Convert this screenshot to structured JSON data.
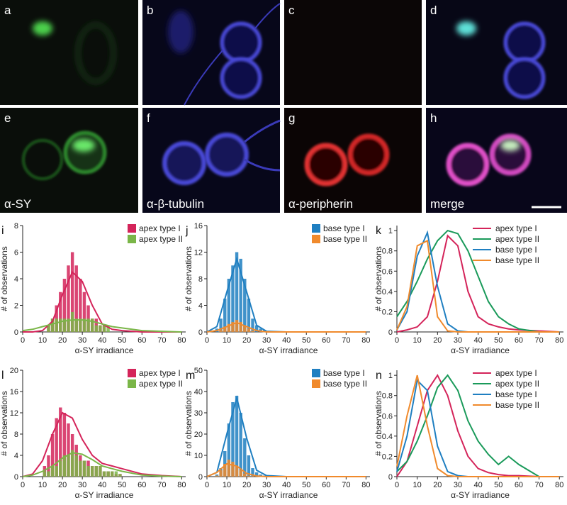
{
  "micrographs": [
    {
      "label": "a"
    },
    {
      "label": "b"
    },
    {
      "label": "c"
    },
    {
      "label": "d"
    },
    {
      "label": "e",
      "caption": "α-SY"
    },
    {
      "label": "f",
      "caption": "α-β-tubulin"
    },
    {
      "label": "g",
      "caption": "α-peripherin"
    },
    {
      "label": "h",
      "caption": "merge"
    }
  ],
  "chart_data": [
    {
      "type": "histogram",
      "panel": "i",
      "xlabel": "α-SY irradiance",
      "ylabel": "# of observations",
      "xlim": [
        0,
        82
      ],
      "xticks": [
        0,
        10,
        20,
        30,
        40,
        50,
        60,
        70,
        80
      ],
      "ylim": [
        0,
        8
      ],
      "yticks": [
        0,
        2,
        4,
        6,
        8
      ],
      "legend": "top-right",
      "series": [
        {
          "name": "apex type I",
          "color": "#d4245a",
          "bins": [
            10,
            12,
            14,
            16,
            18,
            20,
            22,
            24,
            26,
            28,
            30,
            32,
            34,
            36,
            38,
            40,
            42,
            44,
            46,
            48,
            50
          ],
          "values": [
            0,
            0.5,
            1,
            2,
            3,
            4,
            5,
            6,
            5,
            4,
            3,
            2,
            1,
            1,
            0.5,
            0.5,
            0,
            0,
            0,
            0
          ],
          "fit": {
            "x": [
              0,
              5,
              10,
              15,
              20,
              25,
              30,
              35,
              40,
              45,
              50,
              60,
              70,
              80
            ],
            "values": [
              0,
              0,
              0.1,
              0.8,
              2.8,
              4.5,
              3.8,
              2,
              0.6,
              0.2,
              0.1,
              0,
              0,
              0
            ]
          }
        },
        {
          "name": "apex type II",
          "color": "#7ab648",
          "bins": [
            10,
            12,
            14,
            16,
            18,
            20,
            22,
            24,
            26,
            28,
            30,
            32,
            34,
            36,
            38,
            40,
            42,
            44,
            46,
            48,
            50
          ],
          "values": [
            0,
            0.5,
            1,
            1,
            1,
            1,
            1,
            1.5,
            1,
            1,
            1,
            1,
            1,
            0.5,
            0.5,
            0.5,
            0.5,
            0,
            0,
            0
          ],
          "fit": {
            "x": [
              0,
              5,
              10,
              15,
              20,
              25,
              30,
              35,
              40,
              45,
              50,
              60,
              70,
              80
            ],
            "values": [
              0.1,
              0.2,
              0.4,
              0.6,
              0.8,
              0.9,
              0.9,
              0.8,
              0.6,
              0.4,
              0.3,
              0.1,
              0.05,
              0
            ]
          }
        }
      ]
    },
    {
      "type": "histogram",
      "panel": "j",
      "xlabel": "α-SY irradiance",
      "ylabel": "# of observations",
      "xlim": [
        0,
        82
      ],
      "xticks": [
        0,
        10,
        20,
        30,
        40,
        50,
        60,
        70,
        80
      ],
      "ylim": [
        0,
        16
      ],
      "yticks": [
        0,
        4,
        8,
        12,
        16
      ],
      "legend": "top-right",
      "series": [
        {
          "name": "base type I",
          "color": "#1f7fc1",
          "bins": [
            4,
            6,
            8,
            10,
            12,
            14,
            16,
            18,
            20,
            22,
            24,
            26,
            28,
            30
          ],
          "values": [
            0.5,
            2,
            5,
            8,
            10,
            12,
            11,
            8,
            5,
            2,
            1,
            0.5,
            0.3
          ],
          "fit": {
            "x": [
              0,
              5,
              10,
              15,
              20,
              25,
              30,
              40,
              80
            ],
            "values": [
              0,
              0.8,
              6,
              11,
              6,
              1,
              0.1,
              0,
              0
            ]
          }
        },
        {
          "name": "base type II",
          "color": "#f08a2c",
          "bins": [
            4,
            6,
            8,
            10,
            12,
            14,
            16,
            18,
            20,
            22,
            24,
            26,
            28,
            30
          ],
          "values": [
            0,
            0.3,
            0.8,
            1.2,
            1.5,
            1.8,
            1.5,
            1,
            0.5,
            0.2,
            0,
            0,
            0
          ],
          "fit": {
            "x": [
              0,
              5,
              10,
              15,
              20,
              25,
              30,
              40,
              80
            ],
            "values": [
              0,
              0.2,
              0.8,
              1.4,
              0.8,
              0.2,
              0,
              0,
              0
            ]
          }
        }
      ]
    },
    {
      "type": "line",
      "panel": "k",
      "xlabel": "α-SY irradiance",
      "ylabel": "# of observations",
      "xlim": [
        0,
        82
      ],
      "xticks": [
        0,
        10,
        20,
        30,
        40,
        50,
        60,
        70,
        80
      ],
      "ylim": [
        0,
        1.05
      ],
      "yticks": [
        0,
        0.2,
        0.4,
        0.6,
        0.8,
        1
      ],
      "legend": "top-right",
      "x": [
        0,
        5,
        10,
        15,
        20,
        25,
        30,
        35,
        40,
        45,
        50,
        55,
        60,
        70,
        80
      ],
      "series": [
        {
          "name": "apex type I",
          "color": "#d4245a",
          "values": [
            0,
            0.02,
            0.05,
            0.15,
            0.5,
            0.95,
            0.85,
            0.4,
            0.15,
            0.08,
            0.05,
            0.03,
            0.02,
            0.01,
            0
          ]
        },
        {
          "name": "apex type II",
          "color": "#1a9a5a",
          "values": [
            0.15,
            0.3,
            0.5,
            0.72,
            0.9,
            1,
            0.97,
            0.8,
            0.55,
            0.3,
            0.15,
            0.08,
            0.03,
            0,
            0
          ]
        },
        {
          "name": "base type I",
          "color": "#1f7fc1",
          "values": [
            0.02,
            0.2,
            0.75,
            0.98,
            0.45,
            0.08,
            0.01,
            0,
            0,
            0,
            0,
            0,
            0,
            0,
            0
          ]
        },
        {
          "name": "base type II",
          "color": "#f08a2c",
          "values": [
            0.02,
            0.25,
            0.85,
            0.9,
            0.15,
            0.01,
            0,
            0,
            0,
            0,
            0,
            0,
            0,
            0,
            0
          ]
        }
      ]
    },
    {
      "type": "histogram",
      "panel": "l",
      "xlabel": "α-SY irradiance",
      "ylabel": "# of observations",
      "xlim": [
        0,
        82
      ],
      "xticks": [
        0,
        10,
        20,
        30,
        40,
        50,
        60,
        70,
        80
      ],
      "ylim": [
        0,
        20
      ],
      "yticks": [
        0,
        4,
        8,
        12,
        16,
        20
      ],
      "legend": "top-right",
      "series": [
        {
          "name": "apex type I",
          "color": "#d4245a",
          "bins": [
            10,
            12,
            14,
            16,
            18,
            20,
            22,
            24,
            26,
            28,
            30,
            32,
            34,
            36,
            38,
            40,
            42,
            44,
            46,
            48,
            50
          ],
          "values": [
            2,
            4,
            8,
            11,
            13,
            12,
            10,
            8,
            6,
            4,
            3,
            3,
            2,
            2,
            2,
            1,
            1,
            1,
            0.5,
            0.5
          ],
          "fit": {
            "x": [
              0,
              5,
              10,
              15,
              20,
              25,
              30,
              35,
              40,
              45,
              50,
              60,
              70,
              80
            ],
            "values": [
              0,
              0.5,
              3,
              8,
              12,
              11,
              7,
              4,
              2.5,
              2,
              1.5,
              0.5,
              0.2,
              0
            ]
          }
        },
        {
          "name": "apex type II",
          "color": "#7ab648",
          "bins": [
            10,
            12,
            14,
            16,
            18,
            20,
            22,
            24,
            26,
            28,
            30,
            32,
            34,
            36,
            38,
            40,
            42,
            44,
            46,
            48,
            50
          ],
          "values": [
            1,
            1,
            2,
            2,
            3,
            4,
            4,
            5,
            4,
            3,
            3,
            2,
            2,
            2,
            2,
            1,
            1,
            1,
            1,
            0.5
          ],
          "fit": {
            "x": [
              0,
              5,
              10,
              15,
              20,
              25,
              30,
              35,
              40,
              45,
              50,
              60,
              70,
              80
            ],
            "values": [
              0,
              0.3,
              1,
              2,
              3.5,
              4.5,
              4.2,
              3.2,
              2,
              1.5,
              1,
              0.3,
              0.1,
              0
            ]
          }
        }
      ]
    },
    {
      "type": "histogram",
      "panel": "m",
      "xlabel": "α-SY irradiance",
      "ylabel": "# of observations",
      "xlim": [
        0,
        82
      ],
      "xticks": [
        0,
        10,
        20,
        30,
        40,
        50,
        60,
        70,
        80
      ],
      "ylim": [
        0,
        50
      ],
      "yticks": [
        0,
        10,
        20,
        30,
        40,
        50
      ],
      "legend": "top-right",
      "series": [
        {
          "name": "base type I",
          "color": "#1f7fc1",
          "bins": [
            4,
            6,
            8,
            10,
            12,
            14,
            16,
            18,
            20,
            22,
            24,
            26,
            28,
            30
          ],
          "values": [
            1,
            4,
            12,
            25,
            35,
            38,
            30,
            18,
            10,
            4,
            2,
            1,
            0.5
          ],
          "fit": {
            "x": [
              0,
              5,
              10,
              15,
              20,
              25,
              30,
              40,
              80
            ],
            "values": [
              0,
              2,
              20,
              37,
              18,
              3,
              0.5,
              0,
              0
            ]
          }
        },
        {
          "name": "base type II",
          "color": "#f08a2c",
          "bins": [
            4,
            6,
            8,
            10,
            12,
            14,
            16,
            18,
            20,
            22,
            24,
            26,
            28,
            30
          ],
          "values": [
            0.5,
            3,
            6,
            8,
            7,
            5,
            3,
            1.5,
            0.5,
            0.3,
            0,
            0,
            0
          ],
          "fit": {
            "x": [
              0,
              5,
              10,
              15,
              20,
              25,
              30,
              40,
              80
            ],
            "values": [
              0,
              2,
              6,
              5,
              1.5,
              0.3,
              0,
              0,
              0
            ]
          }
        }
      ]
    },
    {
      "type": "line",
      "panel": "n",
      "xlabel": "α-SY irradiance",
      "ylabel": "# of observations",
      "xlim": [
        0,
        82
      ],
      "xticks": [
        0,
        10,
        20,
        30,
        40,
        50,
        60,
        70,
        80
      ],
      "ylim": [
        0,
        1.05
      ],
      "yticks": [
        0,
        0.2,
        0.4,
        0.6,
        0.8,
        1
      ],
      "legend": "top-right",
      "x": [
        0,
        5,
        10,
        15,
        20,
        25,
        30,
        35,
        40,
        45,
        50,
        55,
        60,
        70,
        80
      ],
      "series": [
        {
          "name": "apex type I",
          "color": "#d4245a",
          "values": [
            0,
            0.15,
            0.5,
            0.85,
            1,
            0.8,
            0.45,
            0.2,
            0.08,
            0.04,
            0.02,
            0.01,
            0.01,
            0,
            0
          ]
        },
        {
          "name": "apex type II",
          "color": "#1a9a5a",
          "values": [
            0.05,
            0.15,
            0.35,
            0.6,
            0.88,
            1,
            0.85,
            0.55,
            0.35,
            0.22,
            0.12,
            0.2,
            0.12,
            0,
            0
          ]
        },
        {
          "name": "base type I",
          "color": "#1f7fc1",
          "values": [
            0.05,
            0.4,
            0.95,
            0.85,
            0.3,
            0.05,
            0.01,
            0,
            0,
            0,
            0,
            0,
            0,
            0,
            0
          ]
        },
        {
          "name": "base type II",
          "color": "#f08a2c",
          "values": [
            0.1,
            0.6,
            1,
            0.5,
            0.08,
            0.01,
            0,
            0,
            0,
            0,
            0,
            0,
            0,
            0,
            0
          ]
        }
      ]
    }
  ]
}
